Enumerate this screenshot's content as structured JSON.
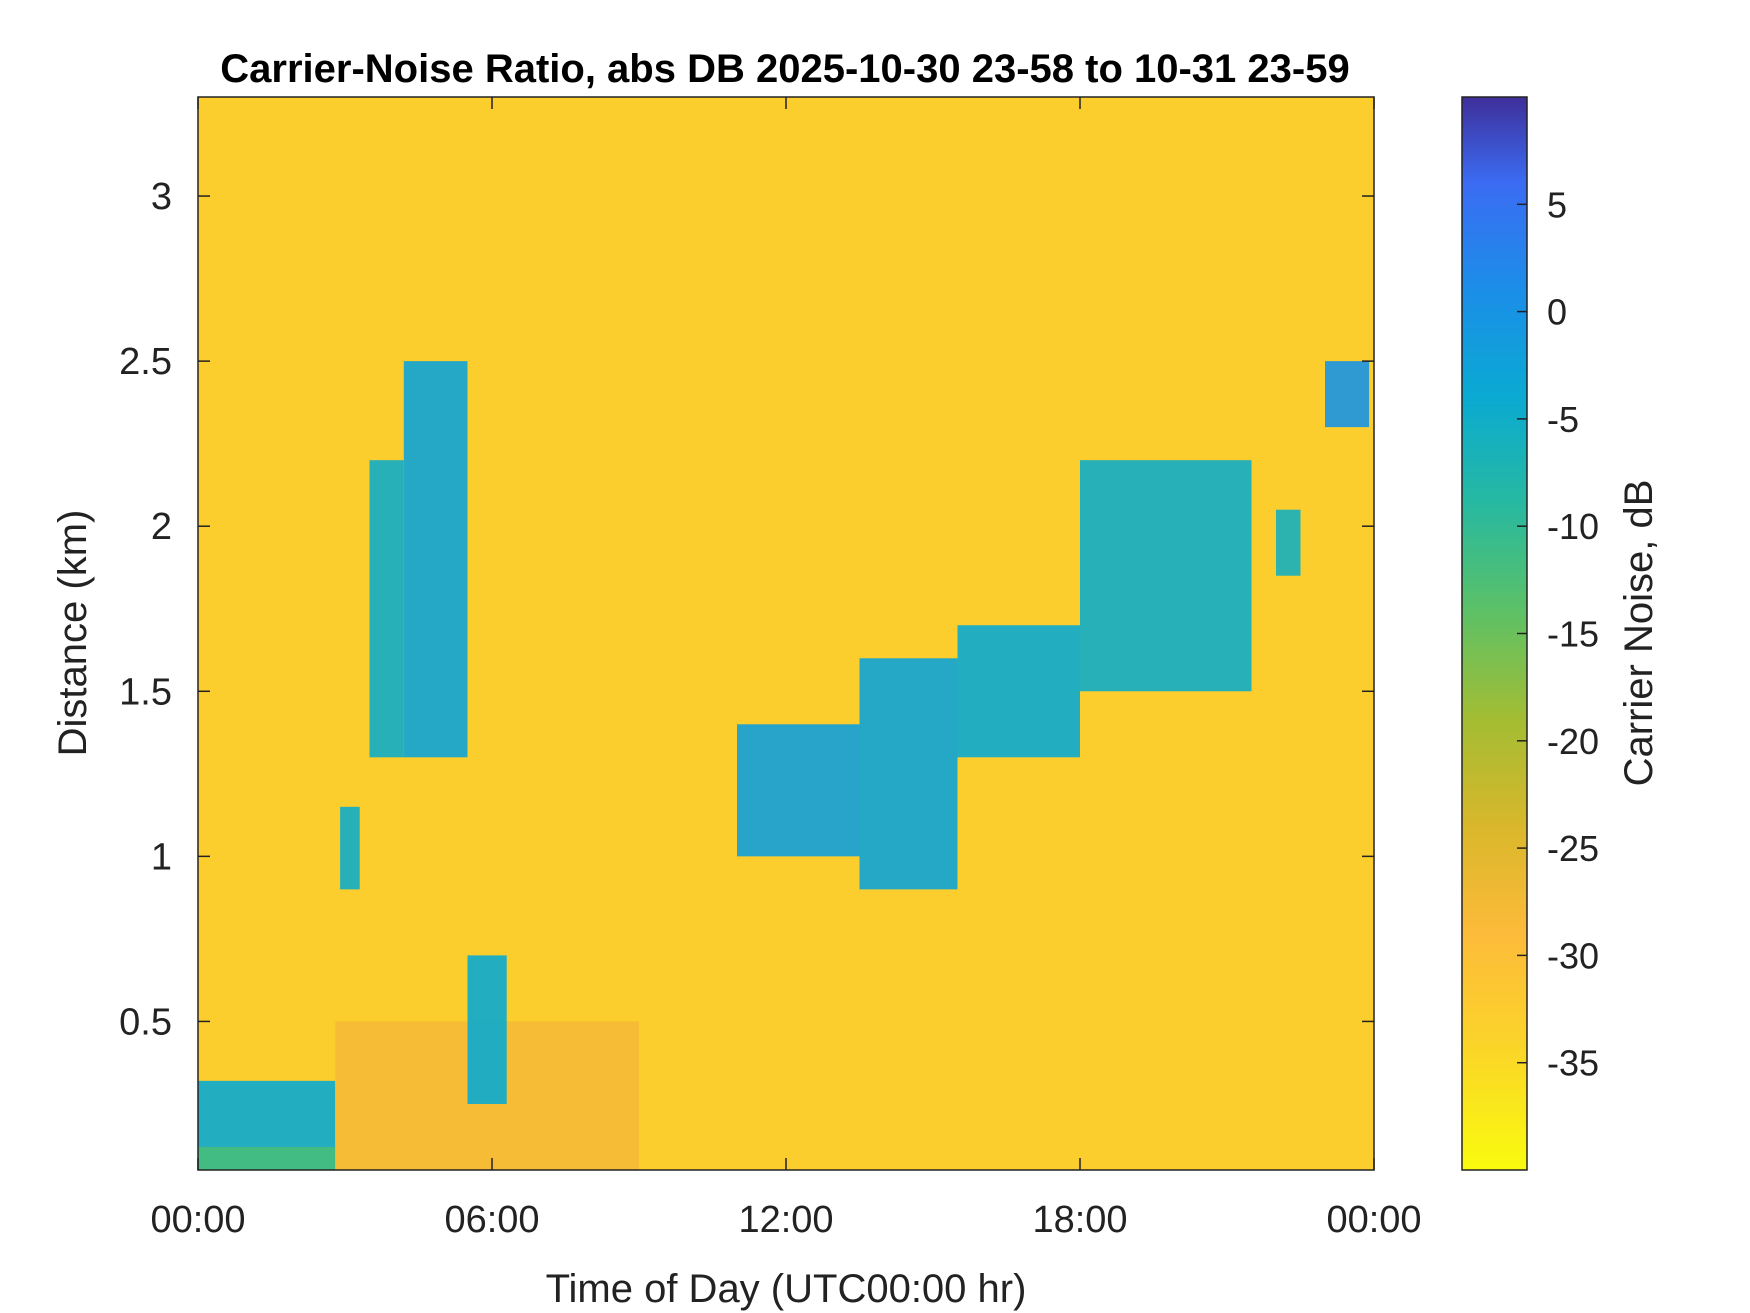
{
  "chart_data": {
    "type": "heatmap",
    "title": "Carrier-Noise Ratio, abs DB 2025-10-30 23-58 to 10-31 23-59",
    "xlabel": "Time of Day (UTC00:00 hr)",
    "ylabel": "Distance (km)",
    "xlim": [
      0,
      24
    ],
    "ylim": [
      0.05,
      3.3
    ],
    "x_ticks": [
      0,
      6,
      12,
      18,
      24
    ],
    "x_tick_labels": [
      "00:00",
      "06:00",
      "12:00",
      "18:00",
      "00:00"
    ],
    "y_ticks": [
      0.5,
      1,
      1.5,
      2,
      2.5,
      3
    ],
    "y_tick_labels": [
      "0.5",
      "1",
      "1.5",
      "2",
      "2.5",
      "3"
    ],
    "grid": false,
    "colorbar": {
      "label": "Carrier Noise, dB",
      "range": [
        -40,
        10
      ],
      "ticks": [
        -35,
        -30,
        -25,
        -20,
        -15,
        -10,
        -5,
        0,
        5
      ],
      "tick_labels": [
        "-35",
        "-30",
        "-25",
        "-20",
        "-15",
        "-10",
        "-5",
        "0",
        "5"
      ],
      "colormap": "parula-reversed"
    },
    "background_value": -33,
    "regions": [
      {
        "t0": 0.0,
        "t1": 2.8,
        "z0": 0.05,
        "z1": 0.32,
        "value": -4
      },
      {
        "t0": 0.0,
        "t1": 2.8,
        "z0": 0.05,
        "z1": 0.12,
        "value": -12
      },
      {
        "t0": 2.8,
        "t1": 9.0,
        "z0": 0.05,
        "z1": 0.5,
        "value": -28
      },
      {
        "t0": 2.9,
        "t1": 3.3,
        "z0": 0.9,
        "z1": 1.15,
        "value": -5
      },
      {
        "t0": 3.5,
        "t1": 4.2,
        "z0": 1.3,
        "z1": 2.2,
        "value": -5
      },
      {
        "t0": 4.2,
        "t1": 5.5,
        "z0": 1.3,
        "z1": 2.5,
        "value": -3
      },
      {
        "t0": 5.5,
        "t1": 6.3,
        "z0": 0.25,
        "z1": 0.7,
        "value": -4
      },
      {
        "t0": 11.0,
        "t1": 13.5,
        "z0": 1.0,
        "z1": 1.4,
        "value": -2
      },
      {
        "t0": 13.5,
        "t1": 15.5,
        "z0": 0.9,
        "z1": 1.6,
        "value": -3
      },
      {
        "t0": 15.5,
        "t1": 18.0,
        "z0": 1.3,
        "z1": 1.7,
        "value": -4
      },
      {
        "t0": 18.0,
        "t1": 21.5,
        "z0": 1.5,
        "z1": 2.2,
        "value": -5
      },
      {
        "t0": 22.0,
        "t1": 22.5,
        "z0": 1.85,
        "z1": 2.05,
        "value": -6
      },
      {
        "t0": 23.0,
        "t1": 23.9,
        "z0": 2.3,
        "z1": 2.5,
        "value": 0
      }
    ]
  }
}
